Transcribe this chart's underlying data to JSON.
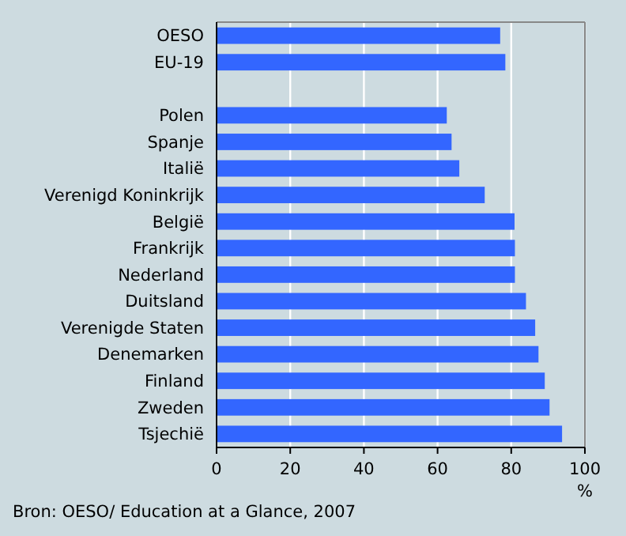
{
  "chart_data": {
    "type": "bar",
    "orientation": "horizontal",
    "categories": [
      "OESO",
      "EU-19",
      null,
      "Polen",
      "Spanje",
      "Italië",
      "Verenigd Koninkrijk",
      "België",
      "Frankrijk",
      "Nederland",
      "Duitsland",
      "Verenigde Staten",
      "Denemarken",
      "Finland",
      "Zweden",
      "Tsjechië"
    ],
    "values": [
      77,
      78.4,
      null,
      62.5,
      63.8,
      65.9,
      72.8,
      80.9,
      81,
      81,
      84,
      86.5,
      87.4,
      89.1,
      90.4,
      93.8
    ],
    "color": "#3366ff",
    "xlim": [
      0,
      100
    ],
    "xticks": [
      0,
      20,
      40,
      60,
      80,
      100
    ],
    "xlabel": "%",
    "grid": "x",
    "annotations": [
      "Bron: OESO/ Education at a Glance, 2007"
    ]
  }
}
